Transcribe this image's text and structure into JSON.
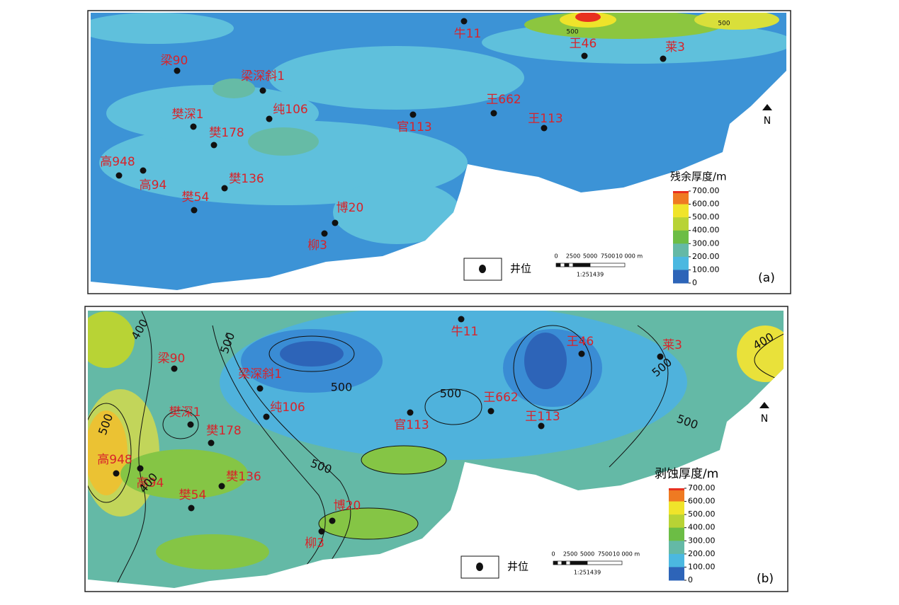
{
  "panels": [
    {
      "label": "(a)",
      "legend_title": "残余厚度/m",
      "legend_ticks": [
        "700.00",
        "600.00",
        "500.00",
        "400.00",
        "300.00",
        "200.00",
        "100.00",
        "0"
      ],
      "wells": [
        "牛11",
        "王46",
        "莱3",
        "梁90",
        "梁深斜1",
        "王662",
        "纯106",
        "官113",
        "王113",
        "樊深1",
        "樊178",
        "高948",
        "高94",
        "樊136",
        "樊54",
        "博20",
        "柳3"
      ],
      "well_legend": "井位",
      "north": "N",
      "scale_ticks": [
        "0",
        "2500",
        "5000",
        "7500",
        "10 000 m"
      ],
      "scale_ratio": "1:251439",
      "contour_labels": [
        "500",
        "500"
      ]
    },
    {
      "label": "(b)",
      "legend_title": "剥蚀厚度/m",
      "legend_ticks": [
        "700.00",
        "600.00",
        "500.00",
        "400.00",
        "300.00",
        "200.00",
        "100.00",
        "0"
      ],
      "wells": [
        "牛11",
        "王46",
        "莱3",
        "梁90",
        "梁深斜1",
        "王662",
        "纯106",
        "官113",
        "王113",
        "樊深1",
        "樊178",
        "高948",
        "高94",
        "樊136",
        "樊54",
        "博20",
        "柳3"
      ],
      "well_legend": "井位",
      "north": "N",
      "scale_ticks": [
        "0",
        "2500",
        "5000",
        "7500",
        "10 000 m"
      ],
      "scale_ratio": "1:251439",
      "contour_labels": [
        "400",
        "500",
        "500",
        "500",
        "500",
        "500",
        "500",
        "400",
        "500",
        "400"
      ]
    }
  ]
}
